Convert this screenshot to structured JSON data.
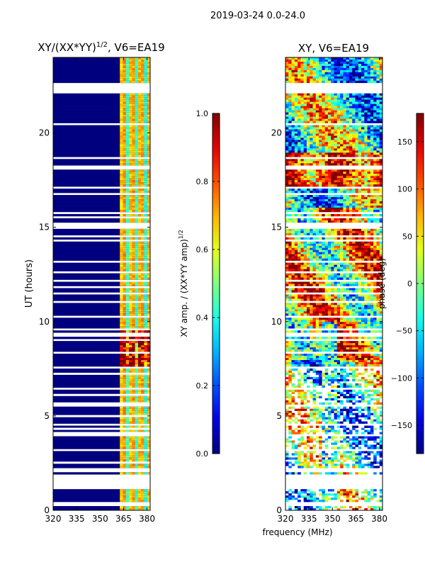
{
  "suptitle": "2019-03-24 0.0-24.0",
  "xlabel_shared": "frequency (MHz)",
  "chart_data": [
    {
      "type": "heatmap",
      "title_main": "XY/(XX*YY)",
      "title_sup": "1/2",
      "title_rest": ", V6=EA19",
      "xlim": [
        320,
        382
      ],
      "ylim": [
        0,
        24
      ],
      "xticks": [
        "320",
        "335",
        "350",
        "365",
        "380"
      ],
      "xtick_values": [
        320,
        335,
        350,
        365,
        380
      ],
      "yticks": [
        "0",
        "5",
        "10",
        "15",
        "20"
      ],
      "ytick_values": [
        0,
        5,
        10,
        15,
        20
      ],
      "ylabel": "UT (hours)",
      "colorbar": {
        "label_main": "XY amp. / (XX*YY amp)",
        "label_sup": "1/2",
        "range": [
          0.0,
          1.0
        ],
        "ticks": [
          "0.0",
          "0.2",
          "0.4",
          "0.6",
          "0.8",
          "1.0"
        ],
        "tick_values": [
          0.0,
          0.2,
          0.4,
          0.6,
          0.8,
          1.0
        ],
        "colormap": "jet"
      }
    },
    {
      "type": "heatmap",
      "title_main": "XY, V6=EA19",
      "xlim": [
        320,
        382
      ],
      "ylim": [
        0,
        24
      ],
      "xticks": [
        "320",
        "335",
        "350",
        "365",
        "380"
      ],
      "xtick_values": [
        320,
        335,
        350,
        365,
        380
      ],
      "yticks": [
        "0",
        "5",
        "10",
        "15",
        "20"
      ],
      "ytick_values": [
        0,
        5,
        10,
        15,
        20
      ],
      "colorbar": {
        "label_main": "phase (deg)",
        "range": [
          -180,
          180
        ],
        "ticks": [
          "−150",
          "−100",
          "−50",
          "0",
          "50",
          "100",
          "150"
        ],
        "tick_values": [
          -150,
          -100,
          -50,
          0,
          50,
          100,
          150
        ],
        "colormap": "jet"
      }
    }
  ]
}
